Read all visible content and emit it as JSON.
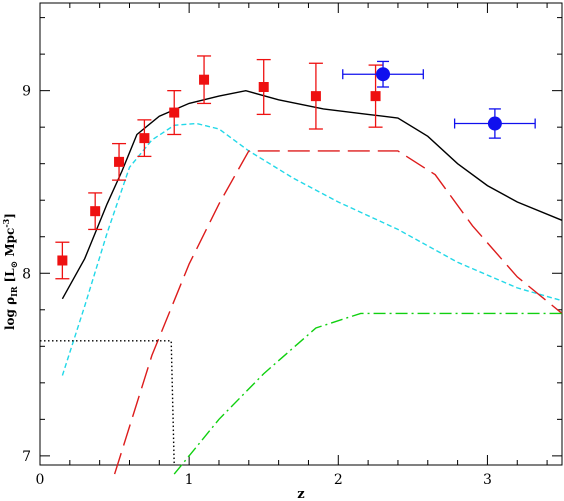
{
  "chart_data": {
    "type": "line",
    "xlabel": "z",
    "ylabel_prefix": "log ρ",
    "ylabel_sub": "IR",
    "ylabel_units": "[L",
    "ylabel_sun": "⊙",
    "ylabel_units_tail": " Mpc",
    "ylabel_exp": "-3",
    "ylabel_close": "]",
    "xlim": [
      0,
      3.5
    ],
    "ylim": [
      6.95,
      9.48
    ],
    "x_ticks": [
      {
        "value": 0,
        "label": "0"
      },
      {
        "value": 1,
        "label": "1"
      },
      {
        "value": 2,
        "label": "2"
      },
      {
        "value": 3,
        "label": "3"
      }
    ],
    "y_ticks": [
      {
        "value": 7,
        "label": "7"
      },
      {
        "value": 8,
        "label": "8"
      },
      {
        "value": 9,
        "label": "9"
      }
    ],
    "x_minor_step": 0.2,
    "y_minor_step": 0.2,
    "series": [
      {
        "style": "solid",
        "color": "#000000",
        "x": [
          0.15,
          0.3,
          0.45,
          0.55,
          0.65,
          0.8,
          1.0,
          1.2,
          1.38,
          1.6,
          1.9,
          2.2,
          2.4,
          2.6,
          2.8,
          3.0,
          3.2,
          3.5
        ],
        "y": [
          7.86,
          8.08,
          8.38,
          8.56,
          8.76,
          8.86,
          8.93,
          8.97,
          9.0,
          8.95,
          8.9,
          8.87,
          8.85,
          8.75,
          8.6,
          8.48,
          8.39,
          8.29
        ]
      },
      {
        "style": "dashed",
        "color": "#22d8e8",
        "x": [
          0.15,
          0.3,
          0.45,
          0.6,
          0.75,
          0.9,
          1.05,
          1.2,
          1.4,
          1.7,
          2.0,
          2.4,
          2.8,
          3.2,
          3.5
        ],
        "y": [
          7.44,
          7.82,
          8.22,
          8.58,
          8.73,
          8.81,
          8.82,
          8.79,
          8.67,
          8.52,
          8.39,
          8.24,
          8.06,
          7.92,
          7.85
        ]
      },
      {
        "style": "longdash",
        "color": "#dd1c1c",
        "x": [
          0.5,
          0.75,
          1.0,
          1.2,
          1.4,
          2.0,
          2.4,
          2.65,
          2.9,
          3.2,
          3.5
        ],
        "y": [
          6.9,
          7.55,
          8.05,
          8.38,
          8.67,
          8.67,
          8.67,
          8.54,
          8.26,
          7.98,
          7.78
        ]
      },
      {
        "style": "dashdot",
        "color": "#10d010",
        "x": [
          0.9,
          1.2,
          1.5,
          1.85,
          2.15,
          2.6,
          3.0,
          3.5
        ],
        "y": [
          6.9,
          7.2,
          7.45,
          7.7,
          7.78,
          7.78,
          7.78,
          7.78
        ]
      },
      {
        "style": "dotted",
        "color": "#000000",
        "x": [
          0.0,
          0.88,
          0.9
        ],
        "y": [
          7.63,
          7.63,
          6.95
        ]
      }
    ],
    "points_red": [
      {
        "x": 0.15,
        "y": 8.07,
        "yerr": 0.1
      },
      {
        "x": 0.37,
        "y": 8.34,
        "yerr": 0.1
      },
      {
        "x": 0.53,
        "y": 8.61,
        "yerr": 0.1
      },
      {
        "x": 0.7,
        "y": 8.74,
        "yerr": 0.1
      },
      {
        "x": 0.9,
        "y": 8.88,
        "yerr": 0.12
      },
      {
        "x": 1.1,
        "y": 9.06,
        "yerr": 0.13
      },
      {
        "x": 1.5,
        "y": 9.02,
        "yerr": 0.15
      },
      {
        "x": 1.85,
        "y": 8.97,
        "yerr": 0.18
      },
      {
        "x": 2.25,
        "y": 8.97,
        "yerr": 0.17
      }
    ],
    "points_blue": [
      {
        "x": 2.3,
        "y": 9.09,
        "xerr": 0.27,
        "yerr": 0.07
      },
      {
        "x": 3.05,
        "y": 8.82,
        "xerr": 0.27,
        "yerr": 0.08
      }
    ],
    "colors": {
      "red_points": "#ee1111",
      "blue_points": "#1010ee"
    }
  }
}
